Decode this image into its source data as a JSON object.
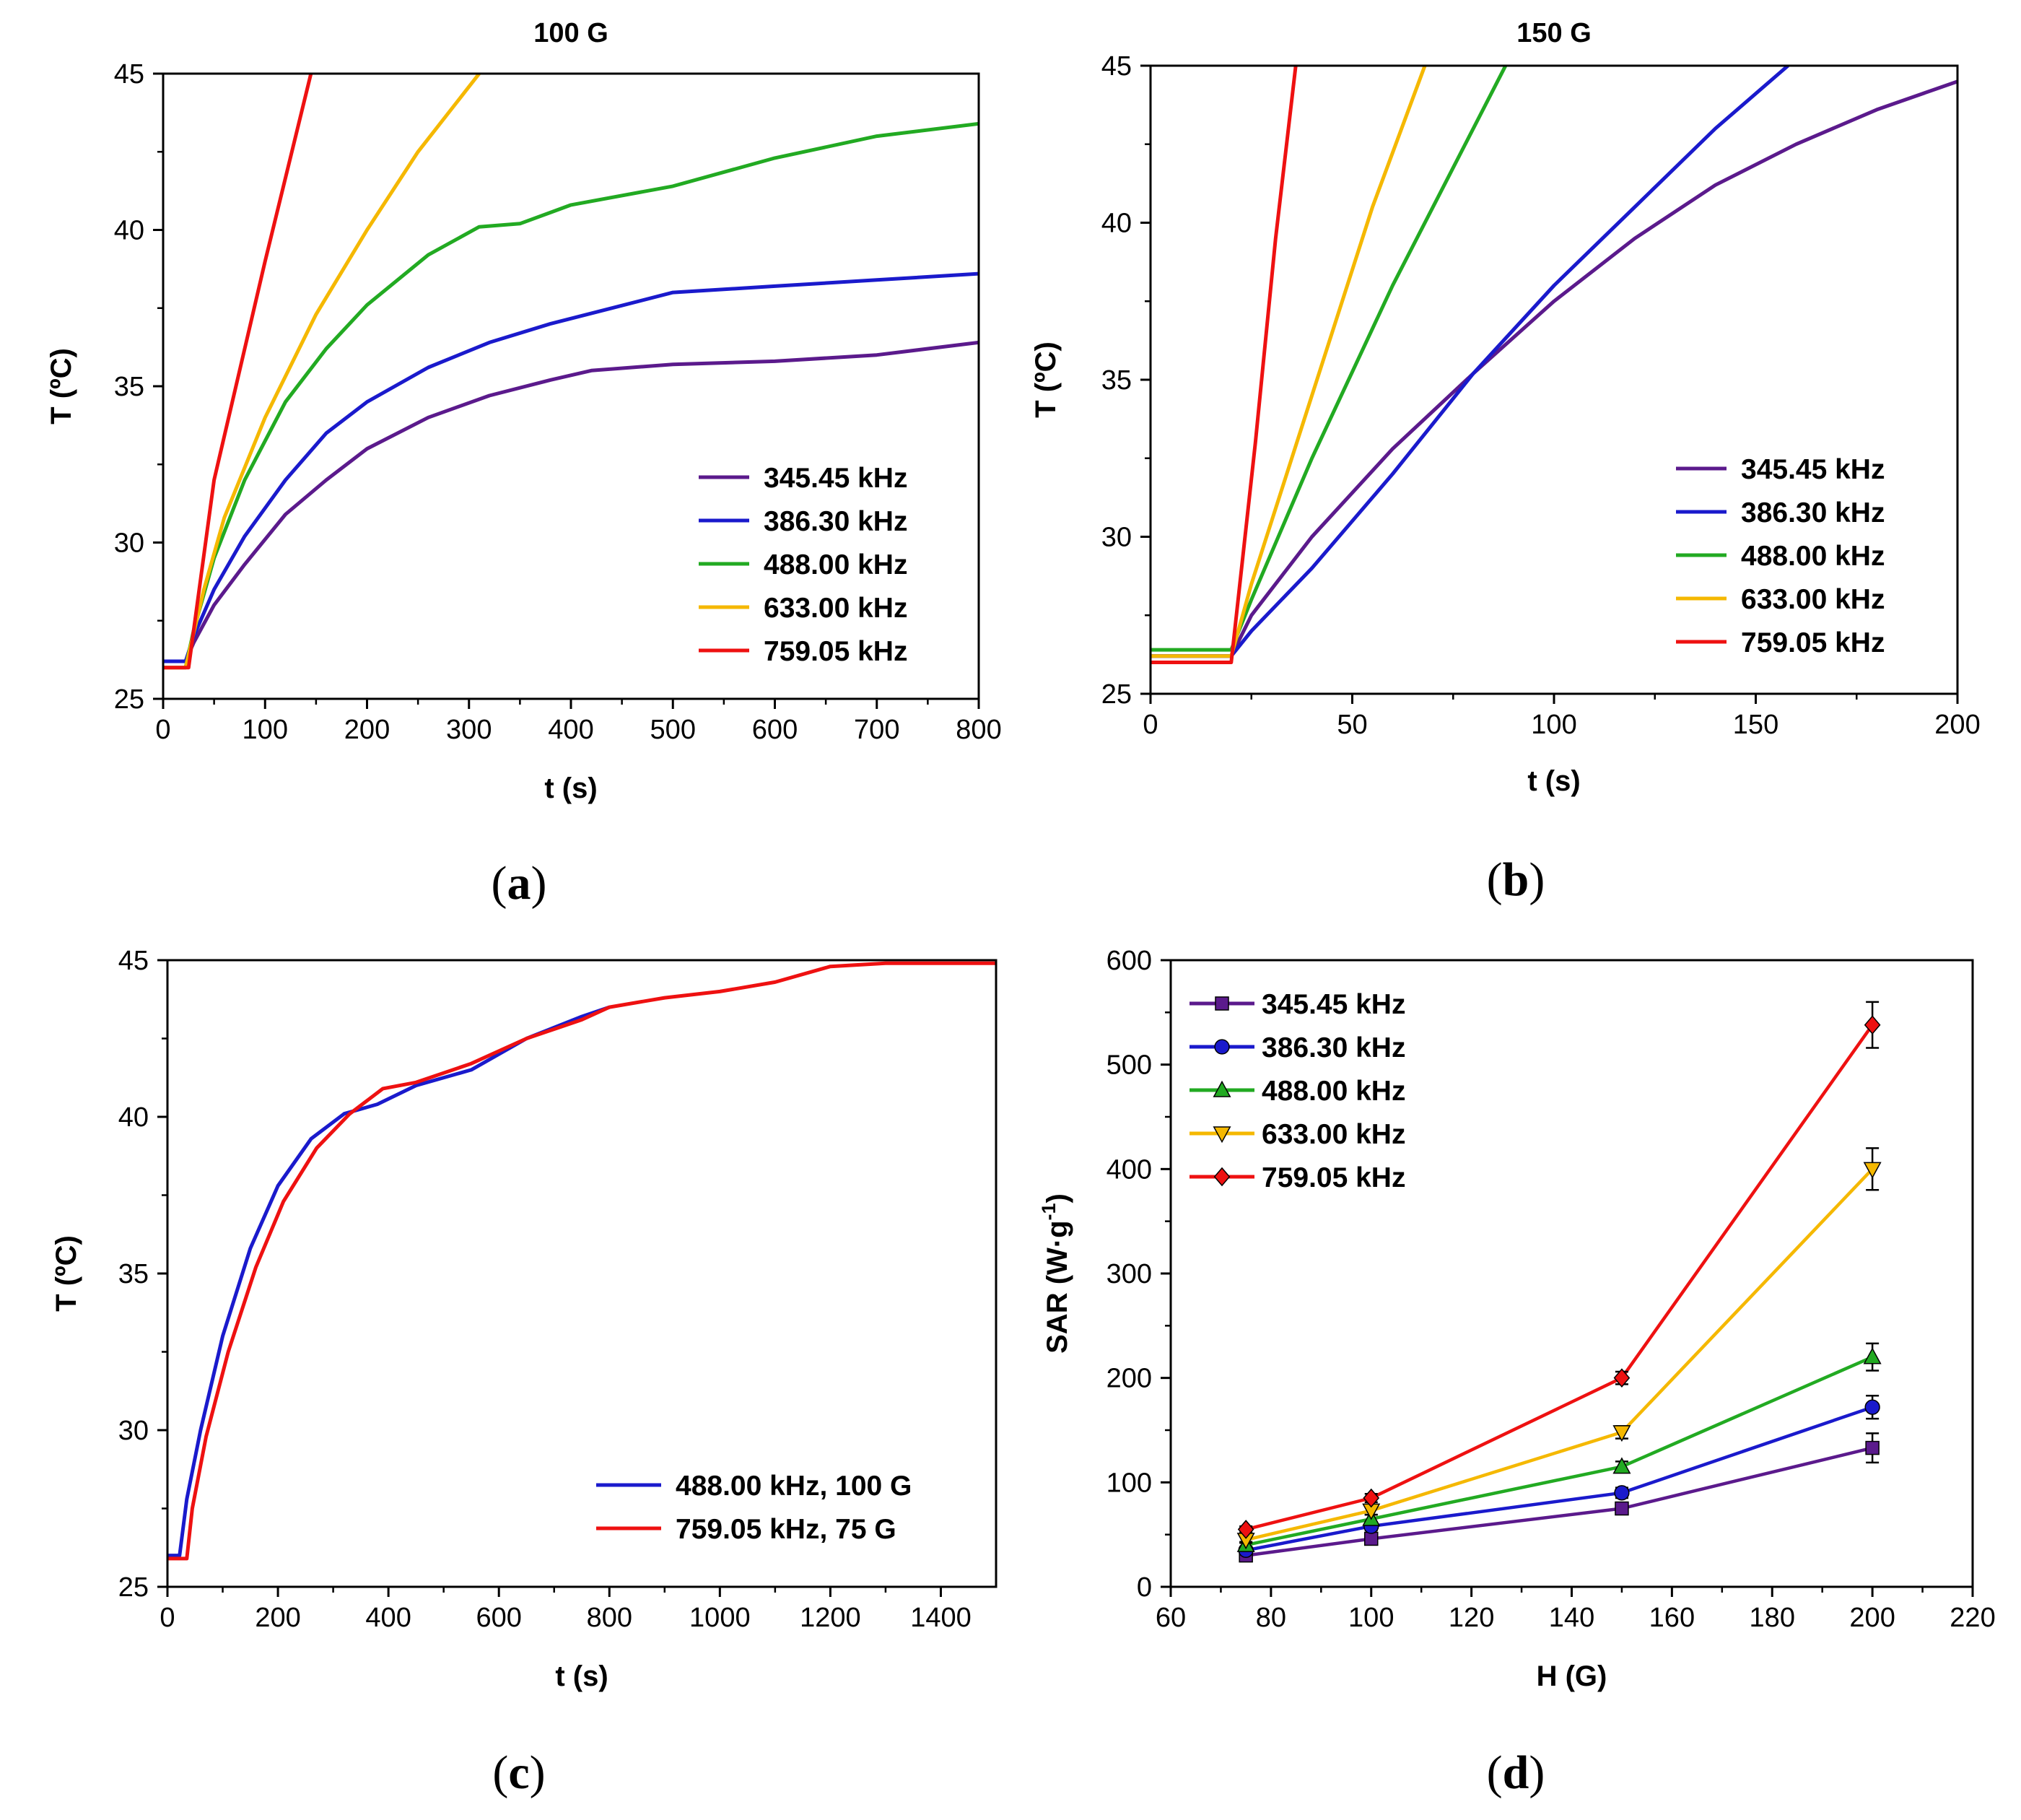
{
  "colors": {
    "345.45 kHz": "#5b1a8c",
    "386.30 kHz": "#1a1acc",
    "488.00 kHz": "#22aa22",
    "633.00 kHz": "#f5b800",
    "759.05 kHz": "#ee1111"
  },
  "chart_data": [
    {
      "panel": "a",
      "caption": "a",
      "type": "line",
      "title": "100 G",
      "xlabel": "t (s)",
      "ylabel": "T (ºC)",
      "xlim": [
        0,
        800
      ],
      "ylim": [
        25,
        45
      ],
      "xticks": [
        0,
        100,
        200,
        300,
        400,
        500,
        600,
        700,
        800
      ],
      "yticks": [
        25,
        30,
        35,
        40,
        45
      ],
      "legend_position": "bottom-right",
      "series": [
        {
          "name": "345.45 kHz",
          "color": "#5b1a8c",
          "x": [
            0,
            22,
            30,
            50,
            80,
            120,
            160,
            200,
            260,
            320,
            380,
            420,
            500,
            600,
            700,
            800
          ],
          "y": [
            26.2,
            26.2,
            26.8,
            28.0,
            29.3,
            30.9,
            32.0,
            33.0,
            34.0,
            34.7,
            35.2,
            35.5,
            35.7,
            35.8,
            36.0,
            36.4
          ]
        },
        {
          "name": "386.30 kHz",
          "color": "#1a1acc",
          "x": [
            0,
            22,
            30,
            50,
            80,
            120,
            160,
            200,
            260,
            320,
            380,
            440,
            500,
            600,
            700,
            800
          ],
          "y": [
            26.2,
            26.2,
            27.0,
            28.5,
            30.2,
            32.0,
            33.5,
            34.5,
            35.6,
            36.4,
            37.0,
            37.5,
            38.0,
            38.2,
            38.4,
            38.6
          ]
        },
        {
          "name": "488.00 kHz",
          "color": "#22aa22",
          "x": [
            0,
            22,
            30,
            50,
            80,
            120,
            160,
            200,
            260,
            310,
            350,
            400,
            500,
            600,
            700,
            800
          ],
          "y": [
            26.0,
            26.0,
            27.2,
            29.5,
            32.0,
            34.5,
            36.2,
            37.6,
            39.2,
            40.1,
            40.2,
            40.8,
            41.4,
            42.3,
            43.0,
            43.4
          ]
        },
        {
          "name": "633.00 kHz",
          "color": "#f5b800",
          "x": [
            0,
            22,
            40,
            60,
            100,
            150,
            200,
            250,
            310
          ],
          "y": [
            26.0,
            26.0,
            28.5,
            30.8,
            34.0,
            37.3,
            40.0,
            42.5,
            45.0
          ]
        },
        {
          "name": "759.05 kHz",
          "color": "#ee1111",
          "x": [
            0,
            25,
            50,
            100,
            145
          ],
          "y": [
            26.0,
            26.0,
            32.0,
            39.0,
            45.0
          ]
        }
      ]
    },
    {
      "panel": "b",
      "caption": "b",
      "type": "line",
      "title": "150 G",
      "xlabel": "t (s)",
      "ylabel": "T (ºC)",
      "xlim": [
        0,
        200
      ],
      "ylim": [
        25,
        45
      ],
      "xticks": [
        0,
        50,
        100,
        150,
        200
      ],
      "yticks": [
        25,
        30,
        35,
        40,
        45
      ],
      "legend_position": "bottom-right",
      "series": [
        {
          "name": "345.45 kHz",
          "color": "#5b1a8c",
          "x": [
            0,
            20,
            25,
            40,
            60,
            80,
            100,
            120,
            140,
            160,
            180,
            200
          ],
          "y": [
            26.2,
            26.2,
            27.5,
            30.0,
            32.8,
            35.2,
            37.5,
            39.5,
            41.2,
            42.5,
            43.6,
            44.5
          ]
        },
        {
          "name": "386.30 kHz",
          "color": "#1a1acc",
          "x": [
            0,
            20,
            25,
            40,
            60,
            80,
            100,
            120,
            140,
            158
          ],
          "y": [
            26.2,
            26.2,
            27.0,
            29.0,
            32.0,
            35.2,
            38.0,
            40.5,
            43.0,
            45.0
          ]
        },
        {
          "name": "488.00 kHz",
          "color": "#22aa22",
          "x": [
            0,
            20,
            25,
            40,
            60,
            80,
            88
          ],
          "y": [
            26.4,
            26.4,
            28.0,
            32.5,
            38.0,
            43.0,
            45.0
          ]
        },
        {
          "name": "633.00 kHz",
          "color": "#f5b800",
          "x": [
            0,
            20,
            25,
            40,
            55,
            68
          ],
          "y": [
            26.2,
            26.2,
            28.5,
            34.5,
            40.5,
            45.0
          ]
        },
        {
          "name": "759.05 kHz",
          "color": "#ee1111",
          "x": [
            0,
            20,
            26,
            31,
            36
          ],
          "y": [
            26.0,
            26.0,
            33.0,
            39.5,
            45.0
          ]
        }
      ]
    },
    {
      "panel": "c",
      "caption": "c",
      "type": "line",
      "title": "",
      "xlabel": "t (s)",
      "ylabel": "T (ºC)",
      "xlim": [
        0,
        1500
      ],
      "ylim": [
        25,
        45
      ],
      "xticks": [
        0,
        200,
        400,
        600,
        800,
        1000,
        1200,
        1400
      ],
      "yticks": [
        25,
        30,
        35,
        40,
        45
      ],
      "legend_position": "bottom-right",
      "series": [
        {
          "name": "488.00 kHz, 100 G",
          "color": "#1a1acc",
          "x": [
            0,
            22,
            35,
            60,
            100,
            150,
            200,
            260,
            320,
            380,
            450,
            550,
            650,
            750,
            800
          ],
          "y": [
            26.0,
            26.0,
            27.8,
            30.0,
            33.0,
            35.8,
            37.8,
            39.3,
            40.1,
            40.4,
            41.0,
            41.5,
            42.5,
            43.2,
            43.5
          ]
        },
        {
          "name": "759.05 kHz, 75 G",
          "color": "#ee1111",
          "x": [
            0,
            35,
            45,
            70,
            110,
            160,
            210,
            270,
            330,
            390,
            450,
            550,
            650,
            750,
            800,
            900,
            1000,
            1100,
            1200,
            1300,
            1400,
            1500
          ],
          "y": [
            25.9,
            25.9,
            27.5,
            29.8,
            32.5,
            35.2,
            37.3,
            39.0,
            40.1,
            40.9,
            41.1,
            41.7,
            42.5,
            43.1,
            43.5,
            43.8,
            44.0,
            44.3,
            44.8,
            44.9,
            44.9,
            44.9
          ]
        }
      ]
    },
    {
      "panel": "d",
      "caption": "d",
      "type": "line",
      "markers": true,
      "title": "",
      "xlabel": "H (G)",
      "ylabel": "SAR (W·g",
      "ylabel_sup": "-1",
      "ylabel_tail": ")",
      "xlim": [
        60,
        220
      ],
      "ylim": [
        0,
        600
      ],
      "xticks": [
        60,
        80,
        100,
        120,
        140,
        160,
        180,
        200,
        220
      ],
      "yticks": [
        0,
        100,
        200,
        300,
        400,
        500,
        600
      ],
      "legend_position": "top-left",
      "series": [
        {
          "name": "345.45 kHz",
          "color": "#5b1a8c",
          "marker": "square",
          "x": [
            75,
            100,
            150,
            200
          ],
          "y": [
            30,
            46,
            75,
            133
          ],
          "err": [
            3,
            4,
            5,
            14
          ]
        },
        {
          "name": "386.30 kHz",
          "color": "#1a1acc",
          "marker": "circle",
          "x": [
            75,
            100,
            150,
            200
          ],
          "y": [
            35,
            58,
            90,
            172
          ],
          "err": [
            3,
            4,
            5,
            11
          ]
        },
        {
          "name": "488.00 kHz",
          "color": "#22aa22",
          "marker": "triangle-up",
          "x": [
            75,
            100,
            150,
            200
          ],
          "y": [
            40,
            65,
            115,
            220
          ],
          "err": [
            3,
            4,
            5,
            13
          ]
        },
        {
          "name": "633.00 kHz",
          "color": "#f5b800",
          "marker": "triangle-down",
          "x": [
            75,
            100,
            150,
            200
          ],
          "y": [
            45,
            73,
            148,
            400
          ],
          "err": [
            3,
            4,
            6,
            20
          ]
        },
        {
          "name": "759.05 kHz",
          "color": "#ee1111",
          "marker": "diamond",
          "x": [
            75,
            100,
            150,
            200
          ],
          "y": [
            55,
            85,
            200,
            538
          ],
          "err": [
            3,
            4,
            6,
            22
          ]
        }
      ]
    }
  ]
}
